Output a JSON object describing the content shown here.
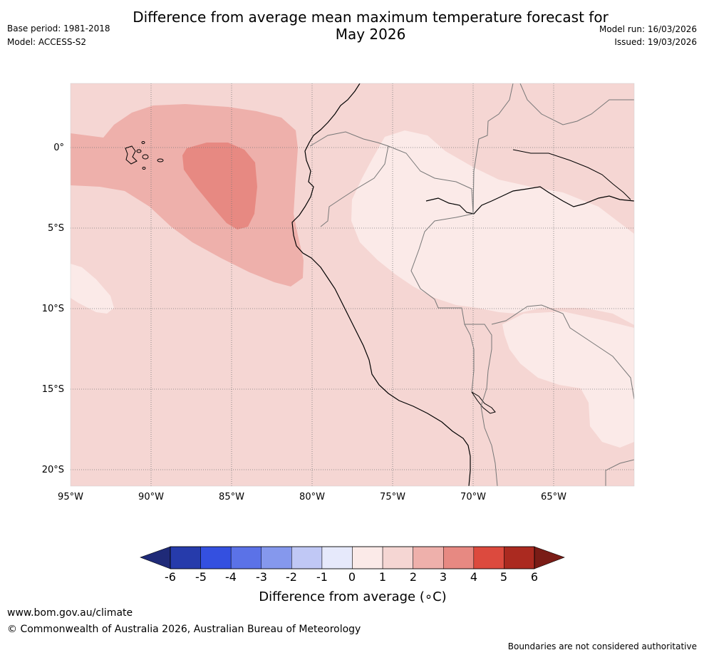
{
  "header": {
    "title_line1": "Difference from average mean maximum temperature forecast for",
    "title_line2": "May 2026",
    "base_period": "Base period: 1981-2018",
    "model": "Model: ACCESS-S2",
    "model_run": "Model run: 16/03/2026",
    "issued": "Issued: 19/03/2026"
  },
  "map": {
    "lat_labels": [
      "0°",
      "5°S",
      "10°S",
      "15°S",
      "20°S"
    ],
    "lon_labels": [
      "95°W",
      "90°W",
      "85°W",
      "80°W",
      "75°W",
      "70°W",
      "65°W"
    ],
    "category_colors": {
      "c1": "#fbeae8",
      "c2": "#f5d6d3",
      "c3": "#eeb0ab",
      "c4": "#e78982"
    }
  },
  "colorbar": {
    "title": "Difference from average (∘C)",
    "tick_labels": [
      "-6",
      "-5",
      "-4",
      "-3",
      "-2",
      "-1",
      "0",
      "1",
      "2",
      "3",
      "4",
      "5",
      "6"
    ],
    "colors": [
      "#263bab",
      "#3450e0",
      "#5b72e7",
      "#8598ed",
      "#c0c8f5",
      "#e6e9fb",
      "#fbeae8",
      "#f5d6d3",
      "#eeb0ab",
      "#e78982",
      "#dc4a3e",
      "#ab2a20"
    ],
    "low_arrow_color": "#1f2a78",
    "high_arrow_color": "#7a1c16"
  },
  "footer": {
    "website": "www.bom.gov.au/climate",
    "copyright": "© Commonwealth of Australia 2026, Australian Bureau of Meteorology",
    "disclaimer": "Boundaries are not considered authoritative"
  }
}
